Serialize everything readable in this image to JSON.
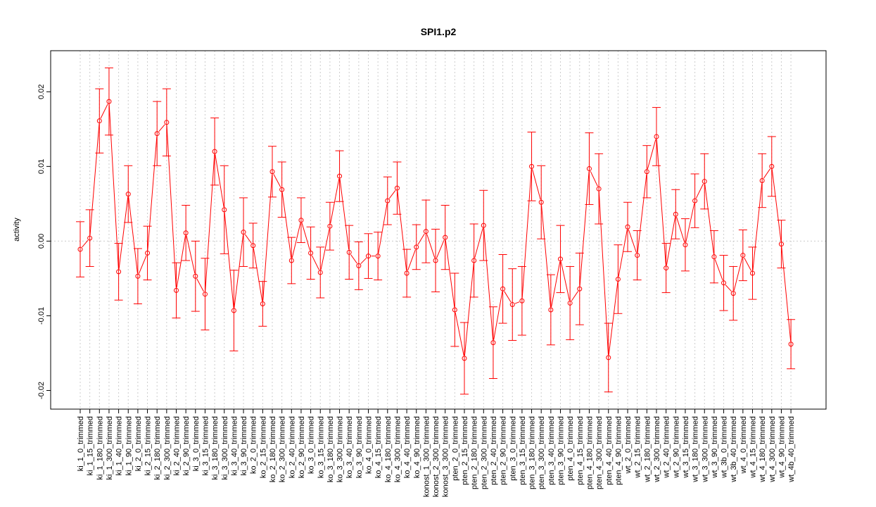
{
  "chart_data": {
    "type": "line",
    "title": "SPI1.p2",
    "xlabel": "",
    "ylabel": "activity",
    "ylim": [
      -0.0225,
      0.0255
    ],
    "y_ticks": [
      -0.02,
      -0.01,
      0.0,
      0.01,
      0.02
    ],
    "y_tick_labels": [
      "-0.02",
      "-0.01",
      "0.00",
      "0.01",
      "0.02"
    ],
    "grid": true,
    "zero_line": true,
    "error_bars": true,
    "color": "#ff0000",
    "grid_color": "#cccccc",
    "categories": [
      "ki_1_0_trimmed",
      "ki_1_15_trimmed",
      "ki_1_180_trimmed",
      "ki_1_300_trimmed",
      "ki_1_40_trimmed",
      "ki_1_90_trimmed",
      "ki_2_0_trimmed",
      "ki_2_15_trimmed",
      "ki_2_180_trimmed",
      "ki_2_300_trimmed",
      "ki_2_40_trimmed",
      "ki_2_90_trimmed",
      "ki_3_0_trimmed",
      "ki_3_15_trimmed",
      "ki_3_180_trimmed",
      "ki_3_300_trimmed",
      "ki_3_40_trimmed",
      "ki_3_90_trimmed",
      "ko_2_0_trimmed",
      "ko_2_15_trimmed",
      "ko_2_180_trimmed",
      "ko_2_300_trimmed",
      "ko_2_40_trimmed",
      "ko_2_90_trimmed",
      "ko_3_0_trimmed",
      "ko_3_15_trimmed",
      "ko_3_180_trimmed",
      "ko_3_300_trimmed",
      "ko_3_40_trimmed",
      "ko_3_90_trimmed",
      "ko_4_0_trimmed",
      "ko_4_15_trimmed",
      "ko_4_180_trimmed",
      "ko_4_300_trimmed",
      "ko_4_40_trimmed",
      "ko_4_90_trimmed",
      "konost_1_300_trimmed",
      "konost_2_300_trimmed",
      "konost_3_300_trimmed",
      "pten_2_0_trimmed",
      "pten_2_15_trimmed",
      "pten_2_180_trimmed",
      "pten_2_300_trimmed",
      "pten_2_40_trimmed",
      "pten_2_90_trimmed",
      "pten_3_0_trimmed",
      "pten_3_15_trimmed",
      "pten_3_180_trimmed",
      "pten_3_300_trimmed",
      "pten_3_40_trimmed",
      "pten_3_90_trimmed",
      "pten_4_0_trimmed",
      "pten_4_15_trimmed",
      "pten_4_180_trimmed",
      "pten_4_300_trimmed",
      "pten_4_40_trimmed",
      "pten_4_90_trimmed",
      "wt_2_0_trimmed",
      "wt_2_15_trimmed",
      "wt_2_180_trimmed",
      "wt_2_300_trimmed",
      "wt_2_40_trimmed",
      "wt_2_90_trimmed",
      "wt_3_15_trimmed",
      "wt_3_180_trimmed",
      "wt_3_300_trimmed",
      "wt_3_90_trimmed",
      "wt_3b_0_trimmed",
      "wt_3b_40_trimmed",
      "wt_4_0_trimmed",
      "wt_4_15_trimmed",
      "wt_4_180_trimmed",
      "wt_4_300_trimmed",
      "wt_4_90_trimmed",
      "wt_4b_40_trimmed"
    ],
    "series": [
      {
        "values": [
          -0.0011,
          0.0004,
          0.0161,
          0.0187,
          -0.0041,
          0.0063,
          -0.0047,
          -0.0016,
          0.0144,
          0.0159,
          -0.0066,
          0.0011,
          -0.0047,
          -0.0071,
          0.012,
          0.0042,
          -0.0093,
          0.0012,
          -0.0006,
          -0.0084,
          0.0093,
          0.0069,
          -0.0026,
          0.0028,
          -0.0016,
          -0.0042,
          0.002,
          0.0087,
          -0.0015,
          -0.0033,
          -0.002,
          -0.002,
          0.0054,
          0.0071,
          -0.0043,
          -0.0008,
          0.0013,
          -0.0026,
          0.0005,
          -0.0092,
          -0.0157,
          -0.0026,
          0.0021,
          -0.0136,
          -0.0064,
          -0.0085,
          -0.008,
          0.01,
          0.0052,
          -0.0092,
          -0.0024,
          -0.0083,
          -0.0064,
          0.0097,
          0.007,
          -0.0156,
          -0.0051,
          0.0019,
          -0.0019,
          0.0093,
          0.014,
          -0.0036,
          0.0036,
          -0.0005,
          0.0054,
          0.008,
          -0.0021,
          -0.0056,
          -0.007,
          -0.0019,
          -0.0043,
          0.0081,
          0.01,
          -0.0004,
          -0.0138
        ],
        "errors": [
          0.0037,
          0.0038,
          0.0043,
          0.0045,
          0.0038,
          0.0038,
          0.0037,
          0.0036,
          0.0043,
          0.0045,
          0.0037,
          0.0037,
          0.0047,
          0.0048,
          0.0045,
          0.0059,
          0.0054,
          0.0046,
          0.003,
          0.003,
          0.0034,
          0.0037,
          0.0031,
          0.003,
          0.0035,
          0.0034,
          0.0032,
          0.0034,
          0.0036,
          0.0032,
          0.003,
          0.0032,
          0.0032,
          0.0035,
          0.0032,
          0.003,
          0.0042,
          0.0042,
          0.0043,
          0.0049,
          0.0048,
          0.0049,
          0.0047,
          0.0048,
          0.0046,
          0.0048,
          0.0046,
          0.0046,
          0.0049,
          0.0047,
          0.0045,
          0.0049,
          0.0048,
          0.0048,
          0.0047,
          0.0046,
          0.0046,
          0.0033,
          0.0033,
          0.0035,
          0.0039,
          0.0033,
          0.0033,
          0.0035,
          0.0036,
          0.0037,
          0.0035,
          0.0037,
          0.0036,
          0.0034,
          0.0035,
          0.0036,
          0.004,
          0.0032,
          0.0033
        ]
      }
    ]
  }
}
